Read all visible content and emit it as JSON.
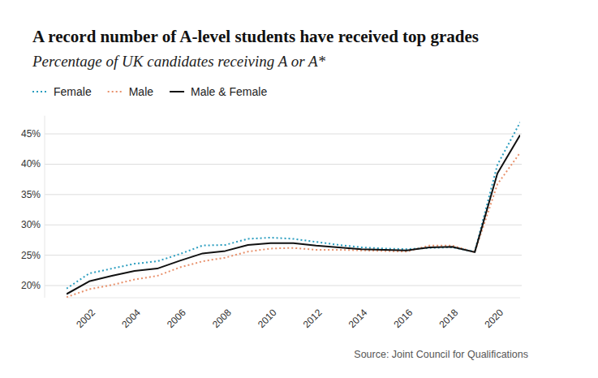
{
  "chart_data": {
    "type": "line",
    "title": "A record number of A-level students have received top grades",
    "subtitle": "Percentage of UK candidates receiving A or A*",
    "source": "Source: Joint Council for Qualifications",
    "x": [
      2001,
      2002,
      2003,
      2004,
      2005,
      2006,
      2007,
      2008,
      2009,
      2010,
      2011,
      2012,
      2013,
      2014,
      2015,
      2016,
      2017,
      2018,
      2019,
      2020,
      2021
    ],
    "series": [
      {
        "name": "Female",
        "color": "#2a9dbf",
        "line_style": "dotted",
        "values": [
          19.5,
          22.0,
          22.8,
          23.6,
          24.0,
          25.2,
          26.6,
          26.7,
          27.7,
          27.9,
          27.7,
          27.2,
          26.7,
          26.3,
          26.1,
          26.0,
          26.2,
          26.3,
          25.6,
          39.9,
          46.9
        ]
      },
      {
        "name": "Male",
        "color": "#e8906a",
        "line_style": "dotted",
        "values": [
          18.1,
          19.4,
          20.1,
          21.0,
          21.6,
          23.0,
          24.0,
          24.6,
          25.6,
          26.1,
          26.2,
          25.9,
          25.9,
          25.8,
          25.7,
          25.6,
          26.6,
          26.6,
          25.5,
          36.7,
          41.9
        ]
      },
      {
        "name": "Male & Female",
        "color": "#111111",
        "line_style": "solid",
        "values": [
          18.6,
          20.7,
          21.6,
          22.4,
          22.8,
          24.1,
          25.3,
          25.7,
          26.7,
          27.0,
          27.0,
          26.6,
          26.3,
          26.0,
          25.9,
          25.8,
          26.3,
          26.4,
          25.5,
          38.5,
          44.8
        ]
      }
    ],
    "xlim": [
      2001,
      2021
    ],
    "xticks": [
      2002,
      2004,
      2006,
      2008,
      2010,
      2012,
      2014,
      2016,
      2018,
      2020
    ],
    "ylim": [
      18,
      48
    ],
    "yticks": [
      {
        "value": 20,
        "label": "20%"
      },
      {
        "value": 25,
        "label": "25%"
      },
      {
        "value": 30,
        "label": "30%"
      },
      {
        "value": 35,
        "label": "35%"
      },
      {
        "value": 40,
        "label": "40%"
      },
      {
        "value": 45,
        "label": "45%"
      }
    ],
    "grid": true,
    "legend": "top-left"
  }
}
